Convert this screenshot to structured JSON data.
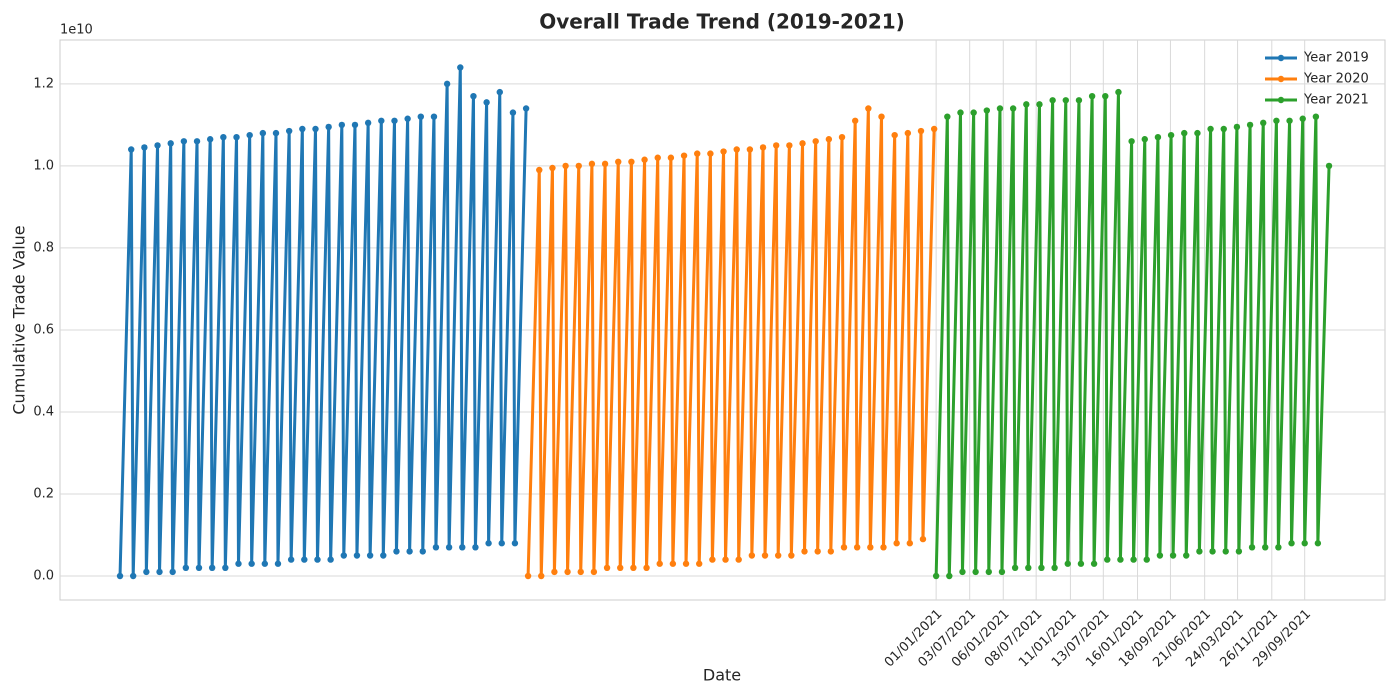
{
  "chart_data": {
    "type": "line",
    "title": "Overall Trade Trend (2019-2021)",
    "xlabel": "Date",
    "ylabel": "Cumulative Trade Value",
    "y_offset_label": "1e10",
    "xlim": [
      -4.56,
      96.1
    ],
    "ylim": [
      -0.0585,
      1.307
    ],
    "xticks": [
      {
        "value": 62,
        "label": "01/01/2021"
      },
      {
        "value": 64.55,
        "label": "03/07/2021"
      },
      {
        "value": 67.1,
        "label": "06/01/2021"
      },
      {
        "value": 69.6,
        "label": "08/07/2021"
      },
      {
        "value": 72.2,
        "label": "11/01/2021"
      },
      {
        "value": 74.7,
        "label": "13/07/2021"
      },
      {
        "value": 77.3,
        "label": "16/01/2021"
      },
      {
        "value": 79.8,
        "label": "18/09/2021"
      },
      {
        "value": 82.4,
        "label": "21/06/2021"
      },
      {
        "value": 84.9,
        "label": "24/03/2021"
      },
      {
        "value": 87.5,
        "label": "26/11/2021"
      },
      {
        "value": 90,
        "label": "29/09/2021"
      }
    ],
    "yticks": [
      {
        "value": 0,
        "label": "0.0"
      },
      0.2,
      0.4,
      0.6,
      0.8,
      {
        "value": 1,
        "label": "1.0"
      },
      1.2
    ],
    "grid": true,
    "legend_position": "upper-right",
    "series": [
      {
        "name": "Year 2019",
        "color": "#1f77b4",
        "x": [
          0,
          0.85,
          1,
          1.85,
          2,
          2.85,
          3,
          3.85,
          4,
          4.85,
          5,
          5.85,
          6,
          6.85,
          7,
          7.85,
          8,
          8.85,
          9,
          9.85,
          10,
          10.85,
          11,
          11.85,
          12,
          12.85,
          13,
          13.85,
          14,
          14.85,
          15,
          15.85,
          16,
          16.85,
          17,
          17.85,
          18,
          18.85,
          19,
          19.85,
          20,
          20.85,
          21,
          21.85,
          22,
          22.85,
          23,
          23.85,
          24,
          24.85,
          25,
          25.85,
          26,
          26.85,
          27,
          27.85,
          28,
          28.85,
          29,
          29.85,
          30,
          30.85
        ],
        "values": [
          0,
          1.04,
          0,
          1.045,
          0.01,
          1.05,
          0.01,
          1.055,
          0.01,
          1.06,
          0.02,
          1.06,
          0.02,
          1.065,
          0.02,
          1.07,
          0.02,
          1.07,
          0.03,
          1.075,
          0.03,
          1.08,
          0.03,
          1.08,
          0.03,
          1.085,
          0.04,
          1.09,
          0.04,
          1.09,
          0.04,
          1.095,
          0.04,
          1.1,
          0.05,
          1.1,
          0.05,
          1.105,
          0.05,
          1.11,
          0.05,
          1.11,
          0.06,
          1.115,
          0.06,
          1.12,
          0.06,
          1.12,
          0.07,
          1.2,
          0.07,
          1.24,
          0.07,
          1.17,
          0.07,
          1.155,
          0.08,
          1.18,
          0.08,
          1.13,
          0.08,
          1.14
        ]
      },
      {
        "name": "Year 2020",
        "color": "#ff7f0e",
        "x": [
          31,
          31.85,
          32,
          32.85,
          33,
          33.85,
          34,
          34.85,
          35,
          35.85,
          36,
          36.85,
          37,
          37.85,
          38,
          38.85,
          39,
          39.85,
          40,
          40.85,
          41,
          41.85,
          42,
          42.85,
          43,
          43.85,
          44,
          44.85,
          45,
          45.85,
          46,
          46.85,
          47,
          47.85,
          48,
          48.85,
          49,
          49.85,
          50,
          50.85,
          51,
          51.85,
          52,
          52.85,
          53,
          53.85,
          54,
          54.85,
          55,
          55.85,
          56,
          56.85,
          57,
          57.85,
          58,
          58.85,
          59,
          59.85,
          60,
          60.85,
          61,
          61.85
        ],
        "values": [
          0,
          0.99,
          0,
          0.995,
          0.01,
          1,
          0.01,
          1,
          0.01,
          1.005,
          0.01,
          1.005,
          0.02,
          1.01,
          0.02,
          1.01,
          0.02,
          1.015,
          0.02,
          1.02,
          0.03,
          1.02,
          0.03,
          1.025,
          0.03,
          1.03,
          0.03,
          1.03,
          0.04,
          1.035,
          0.04,
          1.04,
          0.04,
          1.04,
          0.05,
          1.045,
          0.05,
          1.05,
          0.05,
          1.05,
          0.05,
          1.055,
          0.06,
          1.06,
          0.06,
          1.065,
          0.06,
          1.07,
          0.07,
          1.11,
          0.07,
          1.14,
          0.07,
          1.12,
          0.07,
          1.075,
          0.08,
          1.08,
          0.08,
          1.085,
          0.09,
          1.09
        ]
      },
      {
        "name": "Year 2021",
        "color": "#2ca02c",
        "x": [
          62,
          62.85,
          63,
          63.85,
          64,
          64.85,
          65,
          65.85,
          66,
          66.85,
          67,
          67.85,
          68,
          68.85,
          69,
          69.85,
          70,
          70.85,
          71,
          71.85,
          72,
          72.85,
          73,
          73.85,
          74,
          74.85,
          75,
          75.85,
          76,
          76.85,
          77,
          77.85,
          78,
          78.85,
          79,
          79.85,
          80,
          80.85,
          81,
          81.85,
          82,
          82.85,
          83,
          83.85,
          84,
          84.85,
          85,
          85.85,
          86,
          86.85,
          87,
          87.85,
          88,
          88.85,
          89,
          89.85,
          90,
          90.85,
          91,
          91.85
        ],
        "values": [
          0,
          1.12,
          0,
          1.13,
          0.01,
          1.13,
          0.01,
          1.135,
          0.01,
          1.14,
          0.01,
          1.14,
          0.02,
          1.15,
          0.02,
          1.15,
          0.02,
          1.16,
          0.02,
          1.16,
          0.03,
          1.16,
          0.03,
          1.17,
          0.03,
          1.17,
          0.04,
          1.18,
          0.04,
          1.06,
          0.04,
          1.065,
          0.04,
          1.07,
          0.05,
          1.075,
          0.05,
          1.08,
          0.05,
          1.08,
          0.06,
          1.09,
          0.06,
          1.09,
          0.06,
          1.095,
          0.06,
          1.1,
          0.07,
          1.105,
          0.07,
          1.11,
          0.07,
          1.11,
          0.08,
          1.115,
          0.08,
          1.12,
          0.08,
          1
        ]
      }
    ]
  }
}
